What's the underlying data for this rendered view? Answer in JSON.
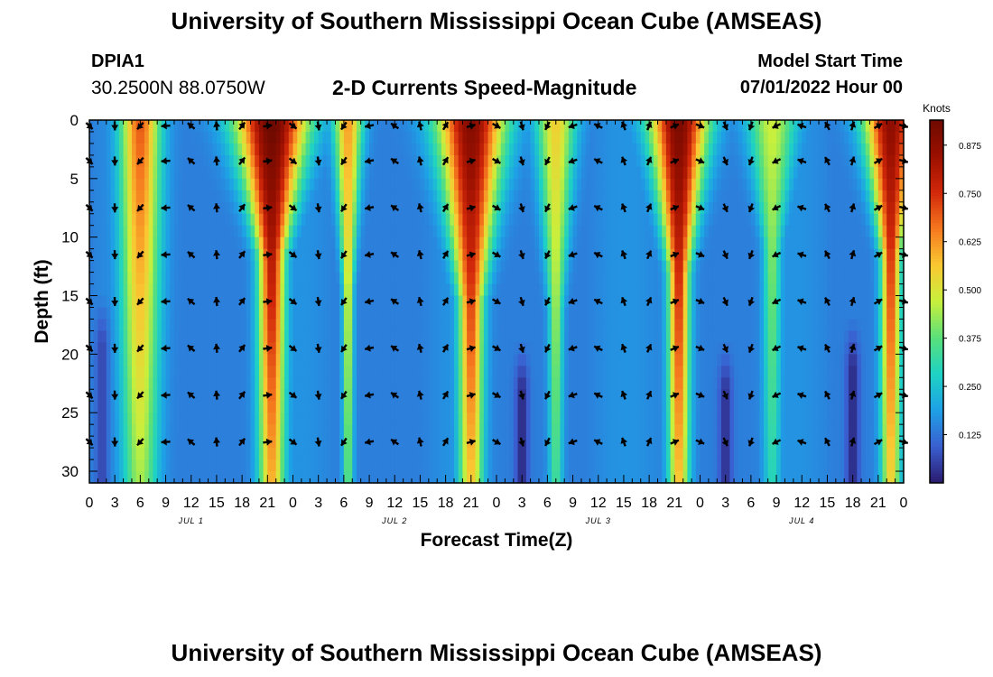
{
  "header": {
    "title": "University of Southern Mississippi Ocean Cube (AMSEAS)",
    "station": "DPIA1",
    "coords": "30.2500N  88.0750W",
    "subtitle": "2-D Currents Speed-Magnitude",
    "model_label": "Model Start Time",
    "model_date": "07/01/2022 Hour 00"
  },
  "footer": {
    "title": "University of Southern Mississippi Ocean Cube (AMSEAS)"
  },
  "colors": {
    "ramp": [
      "#2a1a6e",
      "#3a5fd0",
      "#1ea0e6",
      "#1ed2c4",
      "#5ae07a",
      "#c8f03c",
      "#fac832",
      "#f5781e",
      "#d2280a",
      "#9b1000",
      "#6e0a00"
    ],
    "arrow": "#000000"
  },
  "chart_data": {
    "type": "heatmap",
    "xlabel": "Forecast Time(Z)",
    "ylabel": "Depth (ft)",
    "x_range_hours": [
      0,
      96
    ],
    "ylim": [
      31,
      0
    ],
    "x_tick_labels": [
      "0",
      "3",
      "6",
      "9",
      "12",
      "15",
      "18",
      "21",
      "0",
      "3",
      "6",
      "9",
      "12",
      "15",
      "18",
      "21",
      "0",
      "3",
      "6",
      "9",
      "12",
      "15",
      "18",
      "21",
      "0",
      "3",
      "6",
      "9",
      "12",
      "15",
      "18",
      "21",
      "0"
    ],
    "y_ticks": [
      0,
      5,
      10,
      15,
      20,
      25,
      30
    ],
    "y_tick_labels": [
      "0",
      "5",
      "10",
      "15",
      "20",
      "25",
      "30"
    ],
    "date_labels": [
      "JUL 1",
      "JUL 2",
      "JUL 3",
      "JUL 4"
    ],
    "date_label_hours": [
      12,
      36,
      60,
      84
    ],
    "colorbar": {
      "title": "Knots",
      "range": [
        0,
        0.94
      ],
      "ticks": [
        0.125,
        0.25,
        0.375,
        0.5,
        0.625,
        0.75,
        0.875
      ],
      "tick_labels": [
        "0.125",
        "0.250",
        "0.375",
        "0.500",
        "0.625",
        "0.750",
        "0.875"
      ]
    },
    "speed_peaks": [
      {
        "hour": 6,
        "speed": 0.7,
        "width": 1.6,
        "decay": 0.004
      },
      {
        "hour": 21.5,
        "speed": 0.95,
        "width": 3.0,
        "decay": 0.055
      },
      {
        "hour": 30.5,
        "speed": 0.62,
        "width": 1.2,
        "decay": 0.045
      },
      {
        "hour": 45,
        "speed": 0.9,
        "width": 2.8,
        "decay": 0.042
      },
      {
        "hour": 55,
        "speed": 0.55,
        "width": 1.6,
        "decay": 0.04
      },
      {
        "hour": 69.5,
        "speed": 0.92,
        "width": 2.4,
        "decay": 0.05
      },
      {
        "hour": 80.5,
        "speed": 0.48,
        "width": 2.0,
        "decay": 0.06
      },
      {
        "hour": 94.5,
        "speed": 0.88,
        "width": 2.2,
        "decay": 0.055
      }
    ],
    "speed_lows": [
      {
        "hour": 1.5,
        "depth_from": 15,
        "speed": 0.06
      },
      {
        "hour": 51,
        "depth_from": 19,
        "speed": 0.02
      },
      {
        "hour": 75,
        "depth_from": 19,
        "speed": 0.03
      },
      {
        "hour": 90,
        "depth_from": 17,
        "speed": 0.02
      }
    ],
    "arrow_depths": [
      0.5,
      3.5,
      7.5,
      11.5,
      15.5,
      19.5,
      23.5,
      27.5
    ],
    "arrow_hours": [
      0,
      3,
      6,
      9,
      12,
      15,
      18,
      21,
      24,
      27,
      30,
      33,
      36,
      39,
      42,
      45,
      48,
      51,
      54,
      57,
      60,
      63,
      66,
      69,
      72,
      75,
      78,
      81,
      84,
      87,
      90,
      93,
      96
    ],
    "direction_cycle_hours": 24.5,
    "direction_phase_hours": -3
  }
}
